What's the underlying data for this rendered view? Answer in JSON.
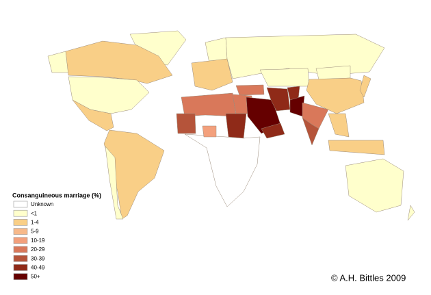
{
  "legend": {
    "title": "Consanguineous marriage (%)",
    "items": [
      {
        "label": "Unknown",
        "color": "#ffffff"
      },
      {
        "label": "<1",
        "color": "#ffffcc"
      },
      {
        "label": "1-4",
        "color": "#f9cf87"
      },
      {
        "label": "5-9",
        "color": "#f7b98a"
      },
      {
        "label": "10-19",
        "color": "#f3a07c"
      },
      {
        "label": "20-29",
        "color": "#d9785a"
      },
      {
        "label": "30-39",
        "color": "#b5543a"
      },
      {
        "label": "40-49",
        "color": "#8f2a18"
      },
      {
        "label": "50+",
        "color": "#650000"
      }
    ]
  },
  "credit": "© A.H. Bittles 2009"
}
